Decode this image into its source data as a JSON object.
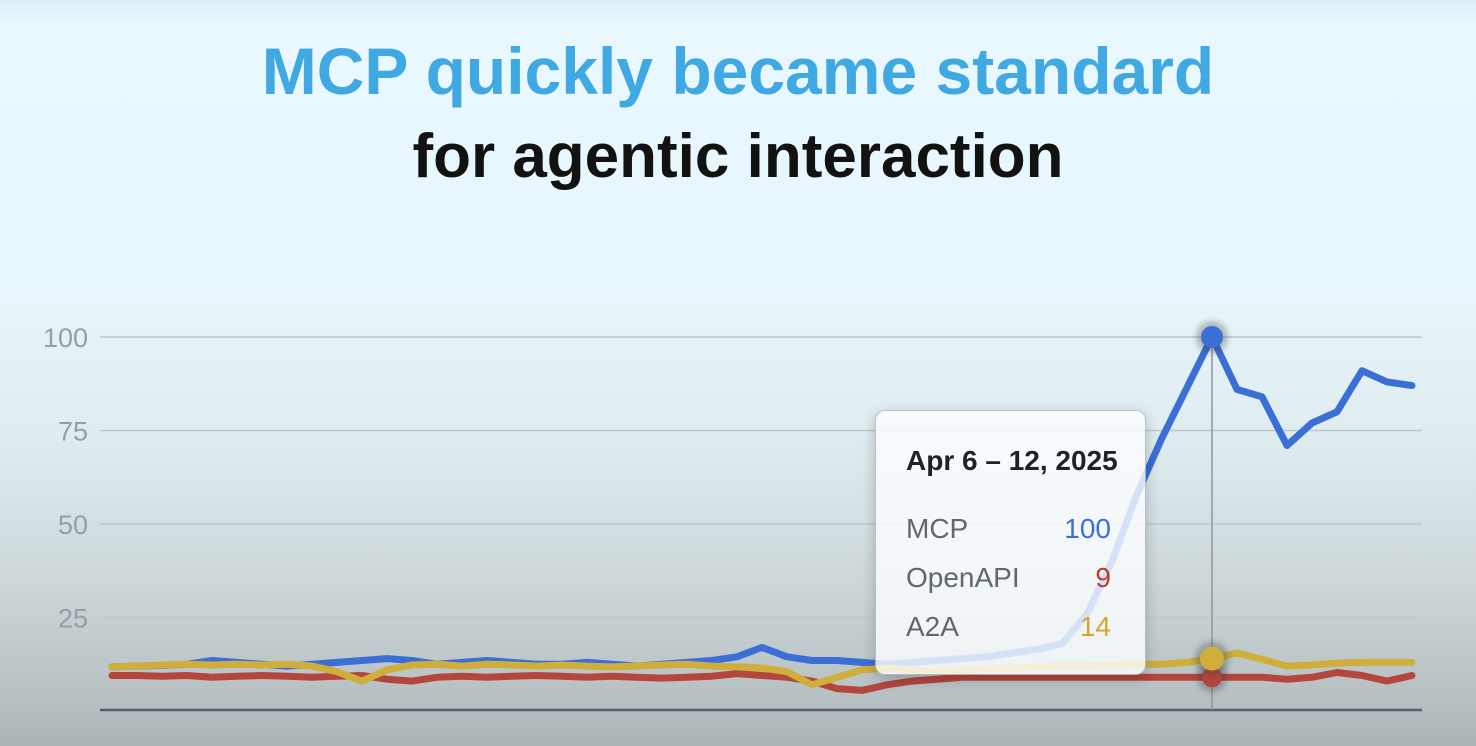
{
  "title": {
    "line1": "MCP quickly became standard",
    "line2": "for agentic interaction",
    "line1_color": "#41a9e1",
    "line2_color": "#121212"
  },
  "tooltip": {
    "date": "Apr 6 – 12, 2025",
    "rows": [
      {
        "label": "MCP",
        "value": "100",
        "color": "#3e6fd8"
      },
      {
        "label": "OpenAPI",
        "value": "9",
        "color": "#bf3a2e"
      },
      {
        "label": "A2A",
        "value": "14",
        "color": "#d4a62f"
      }
    ]
  },
  "chart_data": {
    "type": "line",
    "x_unit": "weeks",
    "ylim": [
      0,
      100
    ],
    "yticks": [
      100,
      75,
      50,
      25
    ],
    "grid": "horizontal",
    "legend_position": "none",
    "highlight": {
      "index": 44,
      "date": "Apr 6 – 12, 2025",
      "values": {
        "MCP": 100,
        "OpenAPI": 9,
        "A2A": 14
      }
    },
    "series": [
      {
        "name": "MCP",
        "color": "#3b6fd6",
        "marker_radius": 11,
        "values": [
          11.8,
          12,
          12.2,
          12.5,
          13.5,
          13,
          12.5,
          12,
          12.5,
          13,
          13.5,
          14,
          13.5,
          12.5,
          13,
          13.5,
          13,
          12.5,
          12.5,
          13,
          12.5,
          12,
          12.5,
          13,
          13.5,
          14.5,
          17,
          14.5,
          13.5,
          13.5,
          13,
          12.5,
          13,
          13.5,
          14,
          14.5,
          15.5,
          16.5,
          18,
          26,
          40,
          58,
          73,
          86.5,
          100,
          86,
          84,
          71,
          77,
          80,
          91,
          88,
          87
        ]
      },
      {
        "name": "OpenAPI",
        "color": "#b5463e",
        "marker_radius": 10,
        "values": [
          9.5,
          9.5,
          9.3,
          9.5,
          9,
          9.3,
          9.5,
          9.3,
          9,
          9.3,
          9.5,
          8.5,
          8,
          9,
          9.3,
          9,
          9.3,
          9.5,
          9.3,
          9,
          9.3,
          9,
          8.8,
          9,
          9.3,
          10,
          9.5,
          9,
          8,
          6,
          5.5,
          7,
          8,
          8.5,
          9,
          9,
          9,
          9,
          9,
          9,
          9,
          9,
          9,
          9,
          9,
          9,
          9,
          8.5,
          9,
          10.3,
          9.5,
          8,
          9.5
        ]
      },
      {
        "name": "A2A",
        "color": "#cfae3c",
        "marker_radius": 12,
        "values": [
          11.8,
          12,
          12.3,
          12.5,
          12.3,
          12.5,
          12.3,
          12.5,
          12,
          10.5,
          8,
          11,
          12.3,
          12.5,
          12,
          12.5,
          12.3,
          12,
          12.3,
          12,
          11.8,
          12,
          12.3,
          12.5,
          12,
          11.8,
          11.5,
          10.5,
          7,
          9,
          11,
          11.5,
          11,
          10.5,
          11,
          11.3,
          11.5,
          11.8,
          12,
          12,
          12.3,
          12.5,
          12.5,
          13,
          14,
          15.5,
          13.8,
          12,
          12.3,
          12.8,
          13,
          13,
          13
        ]
      }
    ]
  }
}
